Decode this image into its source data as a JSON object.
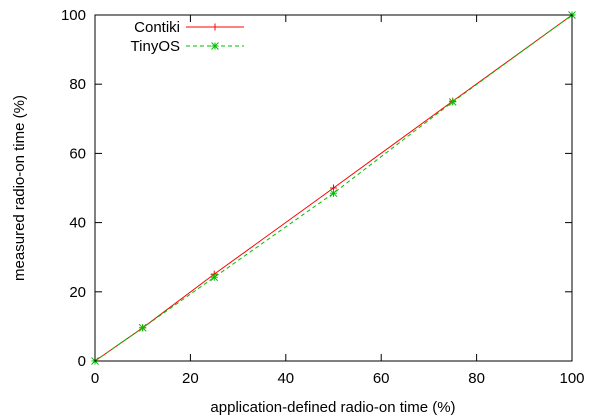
{
  "chart_data": {
    "type": "line",
    "xlabel": "application-defined radio-on time (%)",
    "ylabel": "measured radio-on time (%)",
    "xlim": [
      0,
      100
    ],
    "ylim": [
      0,
      100
    ],
    "xticks": [
      0,
      20,
      40,
      60,
      80,
      100
    ],
    "yticks": [
      0,
      20,
      40,
      60,
      80,
      100
    ],
    "grid": false,
    "legend_position": "top-left",
    "series": [
      {
        "name": "Contiki",
        "color": "#ff0000",
        "style": "solid",
        "marker": "plus",
        "x": [
          0,
          10,
          25,
          50,
          75,
          100
        ],
        "y": [
          0,
          9.6,
          25.1,
          50.0,
          75.1,
          100
        ]
      },
      {
        "name": "TinyOS",
        "color": "#00c000",
        "style": "dashed",
        "marker": "star",
        "x": [
          0,
          10,
          25,
          50,
          75,
          100
        ],
        "y": [
          0,
          9.6,
          24.2,
          48.5,
          74.9,
          100
        ]
      }
    ]
  }
}
